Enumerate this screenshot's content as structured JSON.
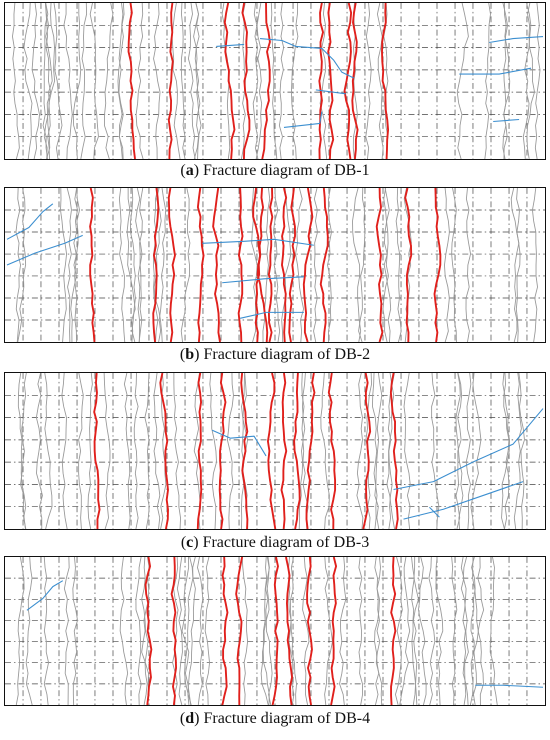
{
  "panels": [
    {
      "id": "a",
      "letter": "a",
      "caption": "Fracture diagram of DB-1"
    },
    {
      "id": "b",
      "letter": "b",
      "caption": "Fracture diagram of DB-2"
    },
    {
      "id": "c",
      "letter": "c",
      "caption": "Fracture diagram of DB-3"
    },
    {
      "id": "d",
      "letter": "d",
      "caption": "Fracture diagram of DB-4"
    }
  ],
  "colors": {
    "major_crack": "#e0201c",
    "minor_crack": "#9a9a9a",
    "horizontal_crack": "#3c8fd0",
    "grid": "#444444",
    "border": "#111111"
  },
  "grid": {
    "columns": 30,
    "rows": 7,
    "style": "dash-dot"
  }
}
